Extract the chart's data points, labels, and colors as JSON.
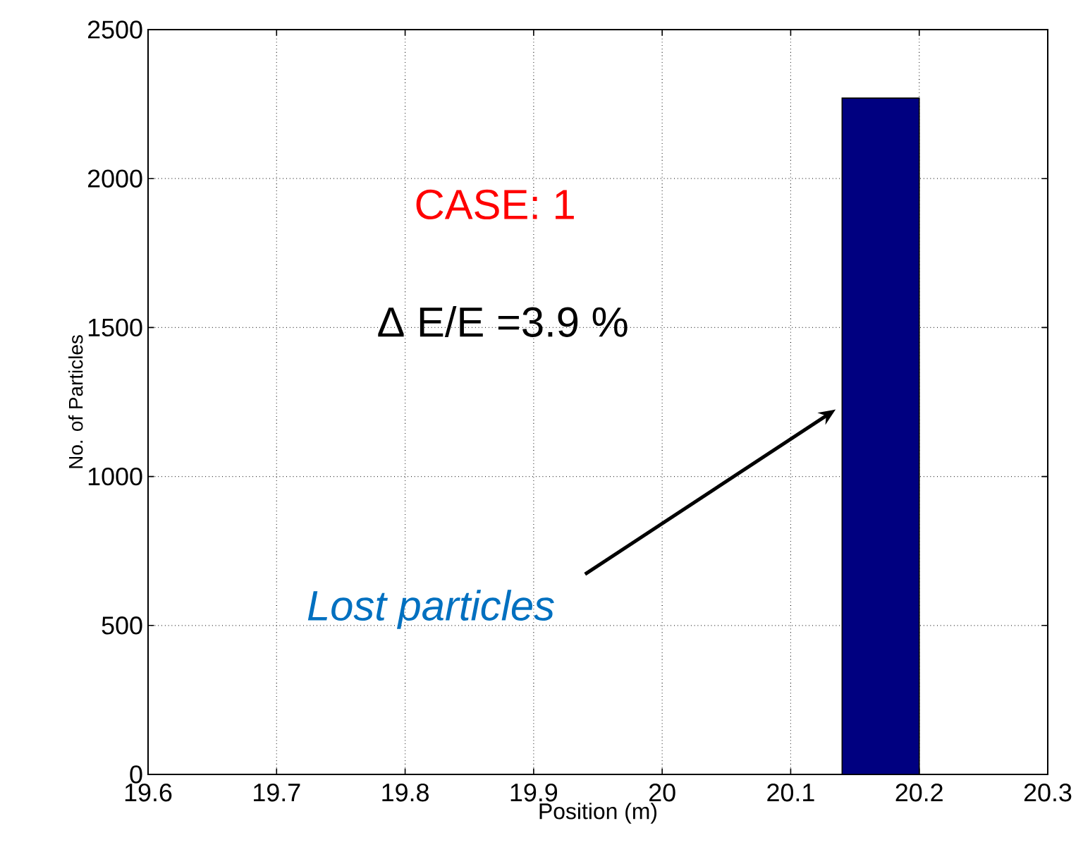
{
  "chart_data": {
    "type": "histogram",
    "xlabel": "Position (m)",
    "ylabel": "No. of Particles",
    "bins": [
      20.14,
      20.2
    ],
    "values": [
      2270
    ],
    "color": "#000080",
    "xlim": [
      19.6,
      20.3
    ],
    "xticks": [
      19.6,
      19.7,
      19.8,
      19.9,
      20,
      20.1,
      20.2,
      20.3
    ],
    "ylim": [
      0,
      2500
    ],
    "yticks": [
      0,
      500,
      1000,
      1500,
      2000,
      2500
    ],
    "grid": true,
    "annotations": [
      "CASE: 1",
      "Δ E/E =3.9 %",
      {
        "text": "Lost particles",
        "x": 20.135,
        "y": 1225
      }
    ]
  }
}
